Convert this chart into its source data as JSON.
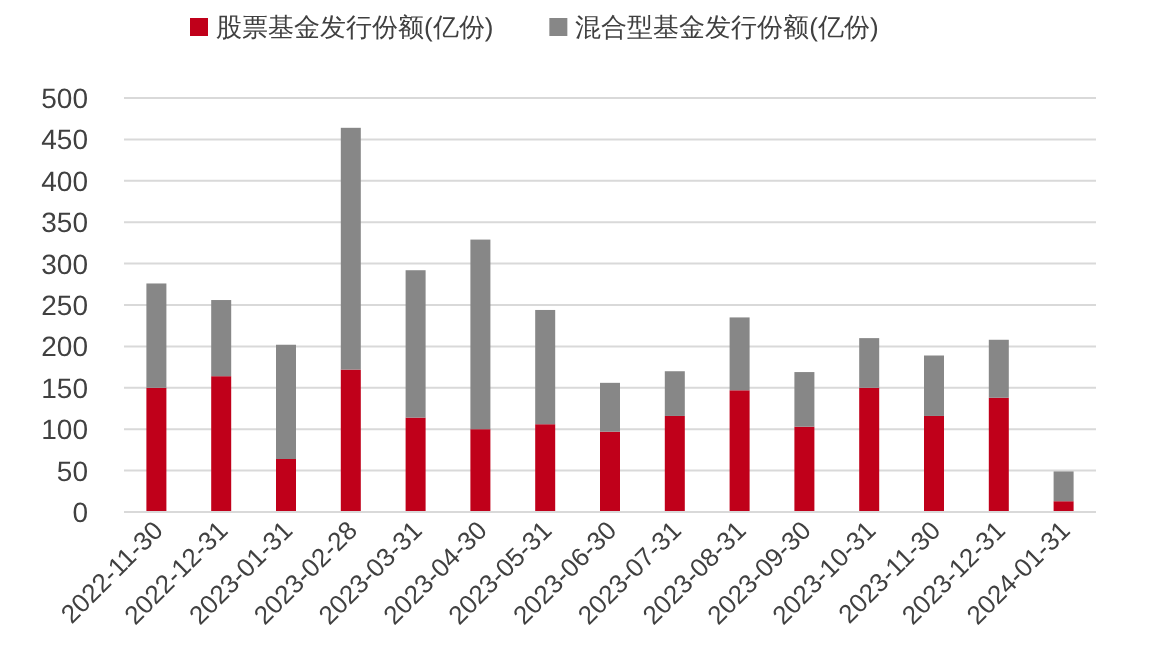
{
  "chart_data": {
    "type": "bar",
    "stacked": true,
    "legend": "top",
    "grid": "y",
    "categories": [
      "2022-11-30",
      "2022-12-31",
      "2023-01-31",
      "2023-02-28",
      "2023-03-31",
      "2023-04-30",
      "2023-05-31",
      "2023-06-30",
      "2023-07-31",
      "2023-08-31",
      "2023-09-30",
      "2023-10-31",
      "2023-11-30",
      "2023-12-31",
      "2024-01-31"
    ],
    "series": [
      {
        "name": "股票基金发行份额(亿份)",
        "color": "#c0001a",
        "values": [
          150,
          164,
          64,
          172,
          114,
          100,
          106,
          97,
          116,
          147,
          103,
          150,
          116,
          138,
          13
        ]
      },
      {
        "name": "混合型基金发行份额(亿份)",
        "color": "#878787",
        "values": [
          126,
          92,
          138,
          292,
          178,
          229,
          138,
          59,
          54,
          88,
          66,
          60,
          73,
          70,
          36
        ]
      }
    ],
    "ylim": [
      0,
      500
    ],
    "yticks": [
      0,
      50,
      100,
      150,
      200,
      250,
      300,
      350,
      400,
      450,
      500
    ]
  }
}
